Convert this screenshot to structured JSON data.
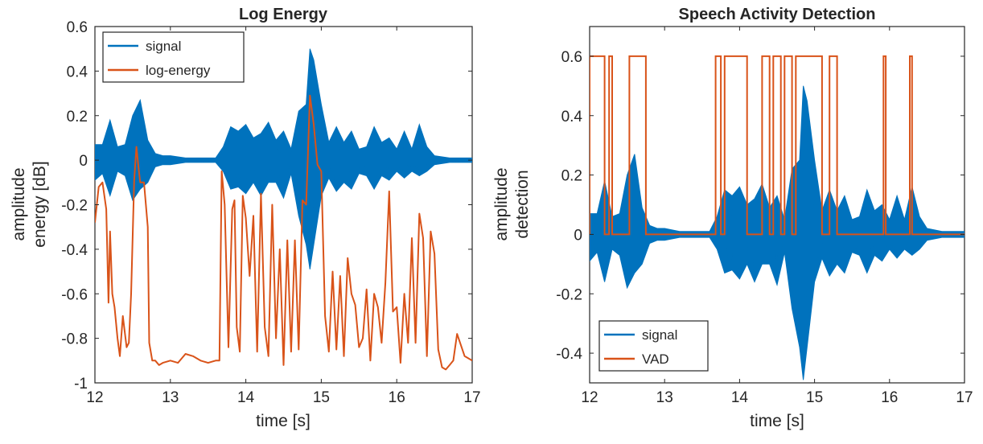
{
  "chart_data": [
    {
      "type": "line",
      "title": "Log Energy",
      "xlabel": "time [s]",
      "ylabel_lines": [
        "amplitude",
        "energy [dB]"
      ],
      "xlim": [
        12,
        17
      ],
      "ylim": [
        -1,
        0.6
      ],
      "xticks": [
        12,
        13,
        14,
        15,
        16,
        17
      ],
      "xticklabels": [
        "12",
        "13",
        "14",
        "15",
        "16",
        "17"
      ],
      "yticks": [
        -1,
        -0.8,
        -0.6,
        -0.4,
        -0.2,
        0,
        0.2,
        0.4,
        0.6
      ],
      "yticklabels": [
        "-1",
        "-0.8",
        "-0.6",
        "-0.4",
        "-0.2",
        "0",
        "0.2",
        "0.4",
        "0.6"
      ],
      "legend_position": "top-left",
      "series": [
        {
          "name": "signal",
          "color": "#0072BD",
          "render": "envelope",
          "x": [
            12.0,
            12.1,
            12.2,
            12.3,
            12.4,
            12.5,
            12.6,
            12.7,
            12.8,
            12.9,
            13.0,
            13.2,
            13.4,
            13.6,
            13.7,
            13.8,
            13.9,
            14.0,
            14.1,
            14.2,
            14.3,
            14.4,
            14.5,
            14.6,
            14.7,
            14.8,
            14.85,
            14.9,
            15.0,
            15.1,
            15.2,
            15.3,
            15.4,
            15.5,
            15.6,
            15.7,
            15.8,
            15.9,
            16.0,
            16.1,
            16.2,
            16.3,
            16.4,
            16.5,
            16.7,
            17.0
          ],
          "y_max": [
            0.07,
            0.07,
            0.18,
            0.06,
            0.07,
            0.2,
            0.27,
            0.09,
            0.03,
            0.02,
            0.02,
            0.01,
            0.01,
            0.01,
            0.06,
            0.15,
            0.13,
            0.16,
            0.1,
            0.12,
            0.17,
            0.09,
            0.13,
            0.05,
            0.22,
            0.25,
            0.5,
            0.45,
            0.25,
            0.08,
            0.15,
            0.08,
            0.13,
            0.05,
            0.06,
            0.15,
            0.08,
            0.1,
            0.05,
            0.13,
            0.05,
            0.16,
            0.06,
            0.02,
            0.01,
            0.01
          ],
          "y_min": [
            -0.09,
            -0.06,
            -0.16,
            -0.05,
            -0.07,
            -0.18,
            -0.13,
            -0.1,
            -0.03,
            -0.02,
            -0.02,
            -0.01,
            -0.01,
            -0.01,
            -0.05,
            -0.13,
            -0.12,
            -0.15,
            -0.1,
            -0.16,
            -0.1,
            -0.1,
            -0.17,
            -0.06,
            -0.25,
            -0.38,
            -0.49,
            -0.38,
            -0.16,
            -0.08,
            -0.14,
            -0.1,
            -0.13,
            -0.06,
            -0.07,
            -0.13,
            -0.07,
            -0.09,
            -0.05,
            -0.08,
            -0.05,
            -0.07,
            -0.05,
            -0.02,
            -0.01,
            -0.01
          ]
        },
        {
          "name": "log-energy",
          "color": "#D95319",
          "render": "line",
          "x": [
            12.0,
            12.05,
            12.1,
            12.15,
            12.18,
            12.2,
            12.23,
            12.26,
            12.3,
            12.33,
            12.37,
            12.42,
            12.45,
            12.48,
            12.52,
            12.55,
            12.58,
            12.6,
            12.65,
            12.7,
            12.72,
            12.76,
            12.8,
            12.85,
            12.9,
            13.0,
            13.1,
            13.2,
            13.3,
            13.4,
            13.5,
            13.6,
            13.65,
            13.68,
            13.72,
            13.77,
            13.82,
            13.85,
            13.88,
            13.92,
            13.96,
            14.0,
            14.05,
            14.1,
            14.15,
            14.2,
            14.25,
            14.3,
            14.35,
            14.4,
            14.45,
            14.5,
            14.55,
            14.6,
            14.65,
            14.7,
            14.75,
            14.8,
            14.85,
            14.9,
            14.95,
            15.0,
            15.05,
            15.1,
            15.15,
            15.2,
            15.25,
            15.3,
            15.35,
            15.4,
            15.45,
            15.5,
            15.55,
            15.6,
            15.65,
            15.7,
            15.75,
            15.8,
            15.85,
            15.9,
            15.95,
            16.0,
            16.05,
            16.1,
            16.15,
            16.2,
            16.25,
            16.3,
            16.35,
            16.4,
            16.45,
            16.5,
            16.55,
            16.6,
            16.65,
            16.7,
            16.75,
            16.8,
            16.9,
            17.0
          ],
          "y": [
            -0.28,
            -0.12,
            -0.1,
            -0.22,
            -0.64,
            -0.32,
            -0.6,
            -0.66,
            -0.8,
            -0.88,
            -0.7,
            -0.84,
            -0.82,
            -0.6,
            -0.09,
            0.06,
            -0.04,
            -0.1,
            -0.1,
            -0.3,
            -0.82,
            -0.9,
            -0.9,
            -0.92,
            -0.91,
            -0.9,
            -0.91,
            -0.87,
            -0.88,
            -0.9,
            -0.91,
            -0.9,
            -0.9,
            -0.05,
            -0.2,
            -0.84,
            -0.22,
            -0.18,
            -0.75,
            -0.86,
            -0.16,
            -0.26,
            -0.52,
            -0.25,
            -0.86,
            -0.15,
            -0.75,
            -0.88,
            -0.2,
            -0.8,
            -0.4,
            -0.92,
            -0.36,
            -0.86,
            -0.36,
            -0.85,
            -0.18,
            -0.2,
            0.29,
            0.16,
            -0.02,
            -0.05,
            -0.7,
            -0.86,
            -0.5,
            -0.85,
            -0.52,
            -0.88,
            -0.44,
            -0.6,
            -0.65,
            -0.84,
            -0.8,
            -0.58,
            -0.9,
            -0.6,
            -0.66,
            -0.82,
            -0.55,
            -0.14,
            -0.68,
            -0.66,
            -0.91,
            -0.6,
            -0.82,
            -0.35,
            -0.82,
            -0.24,
            -0.35,
            -0.88,
            -0.32,
            -0.42,
            -0.85,
            -0.93,
            -0.94,
            -0.92,
            -0.9,
            -0.78,
            -0.88,
            -0.9
          ]
        }
      ]
    },
    {
      "type": "line",
      "title": "Speech Activity Detection",
      "xlabel": "time [s]",
      "ylabel_lines": [
        "amplitude",
        "detection"
      ],
      "xlim": [
        12,
        17
      ],
      "ylim": [
        -0.5,
        0.7
      ],
      "xticks": [
        12,
        13,
        14,
        15,
        16,
        17
      ],
      "xticklabels": [
        "12",
        "13",
        "14",
        "15",
        "16",
        "17"
      ],
      "yticks": [
        -0.4,
        -0.2,
        0,
        0.2,
        0.4,
        0.6
      ],
      "yticklabels": [
        "-0.4",
        "-0.2",
        "0",
        "0.2",
        "0.4",
        "0.6"
      ],
      "legend_position": "bottom-left",
      "series": [
        {
          "name": "signal",
          "color": "#0072BD",
          "render": "envelope",
          "x": [
            12.0,
            12.1,
            12.2,
            12.3,
            12.4,
            12.5,
            12.6,
            12.7,
            12.8,
            12.9,
            13.0,
            13.2,
            13.4,
            13.6,
            13.7,
            13.8,
            13.9,
            14.0,
            14.1,
            14.2,
            14.3,
            14.4,
            14.5,
            14.6,
            14.7,
            14.8,
            14.85,
            14.9,
            15.0,
            15.1,
            15.2,
            15.3,
            15.4,
            15.5,
            15.6,
            15.7,
            15.8,
            15.9,
            16.0,
            16.1,
            16.2,
            16.3,
            16.4,
            16.5,
            16.7,
            17.0
          ],
          "y_max": [
            0.07,
            0.07,
            0.18,
            0.06,
            0.07,
            0.2,
            0.27,
            0.09,
            0.03,
            0.02,
            0.02,
            0.01,
            0.01,
            0.01,
            0.06,
            0.15,
            0.13,
            0.16,
            0.1,
            0.12,
            0.17,
            0.09,
            0.13,
            0.05,
            0.22,
            0.25,
            0.5,
            0.45,
            0.25,
            0.08,
            0.15,
            0.08,
            0.13,
            0.05,
            0.06,
            0.15,
            0.08,
            0.1,
            0.05,
            0.13,
            0.05,
            0.16,
            0.06,
            0.02,
            0.01,
            0.01
          ],
          "y_min": [
            -0.09,
            -0.06,
            -0.16,
            -0.05,
            -0.07,
            -0.18,
            -0.13,
            -0.1,
            -0.03,
            -0.02,
            -0.02,
            -0.01,
            -0.01,
            -0.01,
            -0.05,
            -0.13,
            -0.12,
            -0.15,
            -0.1,
            -0.16,
            -0.1,
            -0.1,
            -0.17,
            -0.06,
            -0.25,
            -0.38,
            -0.49,
            -0.38,
            -0.16,
            -0.08,
            -0.14,
            -0.1,
            -0.13,
            -0.06,
            -0.07,
            -0.13,
            -0.07,
            -0.09,
            -0.05,
            -0.08,
            -0.05,
            -0.07,
            -0.05,
            -0.02,
            -0.01,
            -0.01
          ]
        },
        {
          "name": "VAD",
          "color": "#D95319",
          "render": "step",
          "low": 0,
          "high": 0.6,
          "on_intervals": [
            [
              12.0,
              12.2
            ],
            [
              12.26,
              12.3
            ],
            [
              12.53,
              12.75
            ],
            [
              13.68,
              13.75
            ],
            [
              13.8,
              14.1
            ],
            [
              14.3,
              14.4
            ],
            [
              14.45,
              14.55
            ],
            [
              14.6,
              14.7
            ],
            [
              14.75,
              15.1
            ],
            [
              15.2,
              15.3
            ],
            [
              15.92,
              15.95
            ],
            [
              16.27,
              16.3
            ]
          ]
        }
      ]
    }
  ]
}
